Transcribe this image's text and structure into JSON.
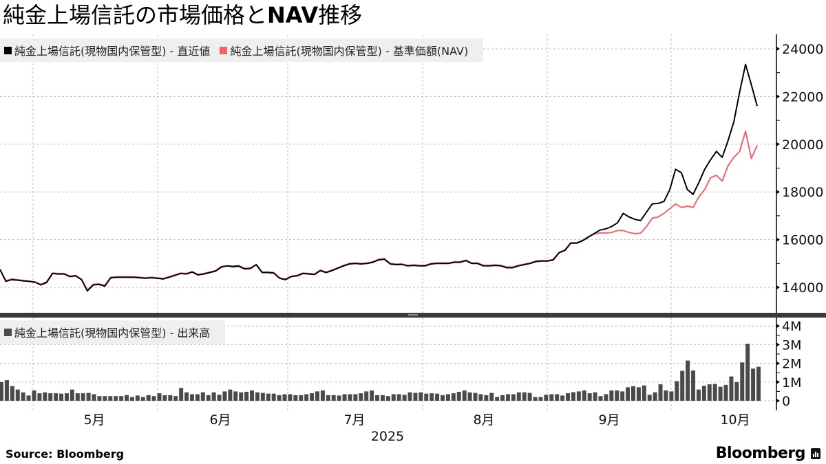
{
  "title": {
    "main": "純金上場信託の市場価格と",
    "bold": "NAV",
    "tail": "推移"
  },
  "legend_top": [
    {
      "label": "純金上場信託(現物国内保管型) - 直近値",
      "color": "#000000"
    },
    {
      "label": "純金上場信託(現物国内保管型) - 基準価額(NAV)",
      "color": "#f2636b"
    }
  ],
  "legend_bottom": [
    {
      "label": "純金上場信託(現物国内保管型) - 出来高",
      "color": "#4a4a4a"
    }
  ],
  "source": "Source:  Bloomberg",
  "brand": "Bloomberg",
  "chart_data": [
    {
      "type": "line",
      "title": "純金上場信託の市場価格とNAV推移",
      "xlabel": "2025",
      "ylabel": "",
      "ylim": [
        13000,
        24500
      ],
      "yticks": [
        14000,
        16000,
        18000,
        20000,
        22000,
        24000
      ],
      "xtick_labels": [
        "5月",
        "6月",
        "7月",
        "8月",
        "9月",
        "10月"
      ],
      "year_label": "2025",
      "grid": true,
      "legend_position": "top-left",
      "series": [
        {
          "name": "純金上場信託(現物国内保管型) - 直近値",
          "color": "#000000",
          "values": [
            14750,
            14250,
            14320,
            14300,
            14270,
            14250,
            14220,
            14100,
            14200,
            14580,
            14560,
            14560,
            14450,
            14480,
            14320,
            13850,
            14100,
            14120,
            14050,
            14400,
            14420,
            14420,
            14420,
            14420,
            14400,
            14380,
            14400,
            14380,
            14350,
            14420,
            14500,
            14580,
            14560,
            14640,
            14520,
            14560,
            14620,
            14680,
            14850,
            14900,
            14880,
            14900,
            14780,
            14800,
            14950,
            14620,
            14620,
            14600,
            14380,
            14320,
            14450,
            14480,
            14580,
            14560,
            14540,
            14700,
            14620,
            14700,
            14800,
            14900,
            14980,
            15000,
            14980,
            15000,
            15050,
            15150,
            15180,
            14980,
            14950,
            14960,
            14900,
            14920,
            14900,
            14900,
            14980,
            15000,
            15000,
            15000,
            15050,
            15050,
            15120,
            15000,
            15000,
            14900,
            14900,
            14920,
            14900,
            14820,
            14820,
            14900,
            14950,
            15000,
            15080,
            15100,
            15100,
            15150,
            15450,
            15550,
            15850,
            15850,
            15950,
            16100,
            16250,
            16400,
            16450,
            16550,
            16700,
            17100,
            16950,
            16850,
            16800,
            17150,
            17500,
            17520,
            17600,
            18100,
            18950,
            18800,
            18100,
            17900,
            18400,
            18950,
            19350,
            19700,
            19450,
            20150,
            20950,
            22200,
            23350,
            22500,
            21600
          ],
          "last": 21600
        },
        {
          "name": "純金上場信託(現物国内保管型) - 基準価額(NAV)",
          "color": "#f2636b",
          "values": [
            14750,
            14280,
            14350,
            14320,
            14290,
            14260,
            14220,
            14130,
            14230,
            14600,
            14580,
            14580,
            14470,
            14500,
            14340,
            13880,
            14120,
            14150,
            14080,
            14420,
            14440,
            14440,
            14440,
            14440,
            14420,
            14400,
            14420,
            14400,
            14370,
            14440,
            14520,
            14600,
            14580,
            14660,
            14540,
            14580,
            14640,
            14700,
            14870,
            14900,
            14850,
            14870,
            14760,
            14780,
            14950,
            14640,
            14640,
            14620,
            14400,
            14340,
            14470,
            14500,
            14600,
            14580,
            14560,
            14720,
            14640,
            14720,
            14820,
            14920,
            15000,
            15020,
            15000,
            15020,
            15070,
            15170,
            15200,
            15000,
            14970,
            14980,
            14920,
            14940,
            14920,
            14920,
            15000,
            15020,
            15020,
            15020,
            15070,
            15070,
            15140,
            15020,
            15020,
            14920,
            14920,
            14940,
            14920,
            14850,
            14850,
            14920,
            14970,
            15020,
            15100,
            15120,
            15120,
            15170,
            15470,
            15570,
            15870,
            15870,
            15970,
            16120,
            16240,
            16280,
            16280,
            16300,
            16380,
            16380,
            16300,
            16250,
            16270,
            16550,
            16900,
            16950,
            17100,
            17300,
            17500,
            17350,
            17400,
            17350,
            17800,
            18100,
            18600,
            18700,
            18450,
            19100,
            19450,
            19700,
            20550,
            19400,
            19950
          ],
          "last": 19950
        }
      ]
    },
    {
      "type": "bar",
      "title": "出来高",
      "ylabel": "",
      "ylim": [
        0,
        4500000
      ],
      "yticks": [
        "0",
        "1M",
        "2M",
        "3M",
        "4M"
      ],
      "series": [
        {
          "name": "純金上場信託(現物国内保管型) - 出来高",
          "color": "#4a4a4a",
          "values": [
            1.0,
            1.1,
            0.78,
            0.6,
            0.45,
            0.28,
            0.55,
            0.4,
            0.45,
            0.4,
            0.4,
            0.38,
            0.4,
            0.6,
            0.4,
            0.4,
            0.42,
            0.35,
            0.25,
            0.25,
            0.25,
            0.25,
            0.25,
            0.3,
            0.2,
            0.28,
            0.2,
            0.3,
            0.25,
            0.4,
            0.3,
            0.3,
            0.25,
            0.68,
            0.45,
            0.35,
            0.35,
            0.45,
            0.3,
            0.45,
            0.32,
            0.5,
            0.6,
            0.5,
            0.45,
            0.48,
            0.55,
            0.45,
            0.42,
            0.38,
            0.38,
            0.3,
            0.35,
            0.35,
            0.3,
            0.3,
            0.35,
            0.4,
            0.5,
            0.55,
            0.3,
            0.3,
            0.28,
            0.35,
            0.35,
            0.35,
            0.4,
            0.5,
            0.55,
            0.3,
            0.3,
            0.25,
            0.35,
            0.35,
            0.32,
            0.45,
            0.42,
            0.45,
            0.38,
            0.4,
            0.38,
            0.3,
            0.35,
            0.4,
            0.48,
            0.55,
            0.45,
            0.42,
            0.35,
            0.3,
            0.42,
            0.2,
            0.3,
            0.35,
            0.35,
            0.45,
            0.45,
            0.42,
            0.2,
            0.2,
            0.32,
            0.35,
            0.35,
            0.28,
            0.4,
            0.46,
            0.5,
            0.55,
            0.4,
            0.45,
            0.25,
            0.35,
            0.55,
            0.55,
            0.5,
            0.72,
            0.78,
            0.72,
            0.82,
            0.32,
            0.45,
            0.88,
            0.55,
            0.5,
            1.05,
            1.6,
            2.15,
            1.62,
            0.6,
            0.8,
            0.88,
            0.9,
            0.75,
            0.85,
            1.3,
            1.0,
            2.05,
            3.05,
            1.72,
            1.82
          ]
        }
      ]
    }
  ]
}
